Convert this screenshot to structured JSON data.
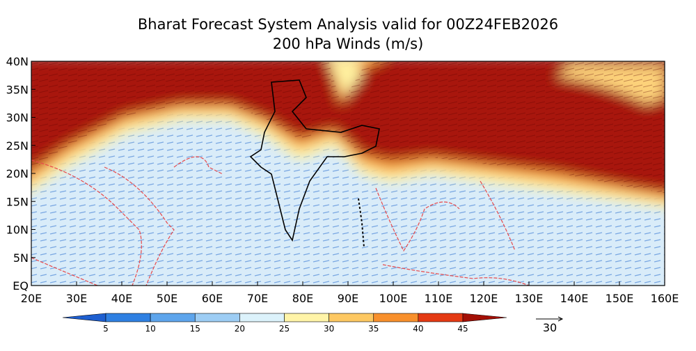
{
  "title": "Bharat Forecast System Analysis valid for 00Z24FEB2026",
  "subtitle": "200 hPa Winds (m/s)",
  "lonlim": [
    20,
    160
  ],
  "latlim": [
    0,
    40
  ],
  "lon_ticks": [
    {
      "value": 20,
      "label": "20E"
    },
    {
      "value": 30,
      "label": "30E"
    },
    {
      "value": 40,
      "label": "40E"
    },
    {
      "value": 50,
      "label": "50E"
    },
    {
      "value": 60,
      "label": "60E"
    },
    {
      "value": 70,
      "label": "70E"
    },
    {
      "value": 80,
      "label": "80E"
    },
    {
      "value": 90,
      "label": "90E"
    },
    {
      "value": 100,
      "label": "100E"
    },
    {
      "value": 110,
      "label": "110E"
    },
    {
      "value": 120,
      "label": "120E"
    },
    {
      "value": 130,
      "label": "130E"
    },
    {
      "value": 140,
      "label": "140E"
    },
    {
      "value": 150,
      "label": "150E"
    },
    {
      "value": 160,
      "label": "160E"
    }
  ],
  "lat_ticks": [
    {
      "value": 0,
      "label": "EQ"
    },
    {
      "value": 5,
      "label": "5N"
    },
    {
      "value": 10,
      "label": "10N"
    },
    {
      "value": 15,
      "label": "15N"
    },
    {
      "value": 20,
      "label": "20N"
    },
    {
      "value": 25,
      "label": "25N"
    },
    {
      "value": 30,
      "label": "30N"
    },
    {
      "value": 35,
      "label": "35N"
    },
    {
      "value": 40,
      "label": "40N"
    }
  ],
  "colorbar": {
    "levels": [
      5,
      10,
      15,
      20,
      25,
      30,
      35,
      40,
      45
    ],
    "colors": [
      "#1e5fd0",
      "#2f80e2",
      "#5ea5ec",
      "#9dcdf4",
      "#dcf2fb",
      "#fff4a8",
      "#fdc862",
      "#f8902c",
      "#e43a14",
      "#a30f05"
    ]
  },
  "reference_vector": 30
}
